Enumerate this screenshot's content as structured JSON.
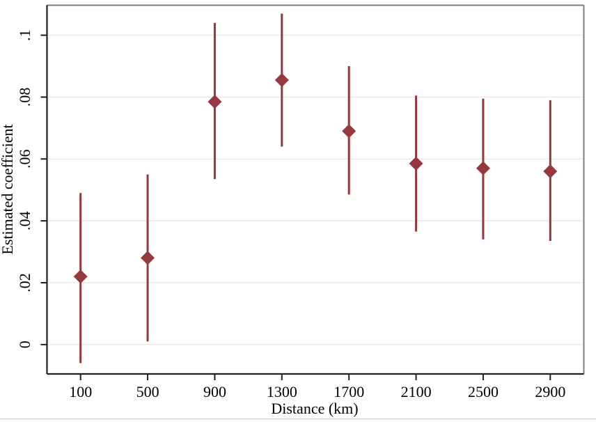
{
  "chart_data": {
    "type": "scatter",
    "subtype": "coefficient-plot-with-error-bars",
    "title": "",
    "xlabel": "Distance (km)",
    "ylabel": "Estimated coefficient",
    "x": [
      100,
      500,
      900,
      1300,
      1700,
      2100,
      2500,
      2900
    ],
    "series": [
      {
        "name": "estimate",
        "values": [
          0.022,
          0.028,
          0.0785,
          0.0855,
          0.069,
          0.0585,
          0.057,
          0.056
        ]
      },
      {
        "name": "ci_low",
        "values": [
          -0.006,
          0.001,
          0.0535,
          0.064,
          0.0485,
          0.0365,
          0.034,
          0.0335
        ]
      },
      {
        "name": "ci_high",
        "values": [
          0.049,
          0.055,
          0.104,
          0.107,
          0.09,
          0.0805,
          0.0795,
          0.079
        ]
      }
    ],
    "x_ticks": [
      100,
      500,
      900,
      1300,
      1700,
      2100,
      2500,
      2900
    ],
    "x_tick_labels": [
      "100",
      "500",
      "900",
      "1300",
      "1700",
      "2100",
      "2500",
      "2900"
    ],
    "y_ticks": [
      0,
      0.02,
      0.04,
      0.06,
      0.08,
      0.1
    ],
    "y_tick_labels": [
      "0",
      ".02",
      ".04",
      ".06",
      ".08",
      ".1"
    ],
    "xlim": [
      -100,
      3100
    ],
    "ylim": [
      -0.0095,
      0.1097
    ],
    "grid": "horizontal-only",
    "legend": "none",
    "y_tick_label_rotation": -90,
    "marker_shape": "diamond",
    "colors": {
      "marker": "#97383F",
      "ci_line": "#97383F",
      "gridline": "#E9E9E9",
      "axis_line": "#1F1F1F",
      "frame_line": "#7D7D7D",
      "text": "#000000",
      "background": "#FFFFFF"
    }
  }
}
